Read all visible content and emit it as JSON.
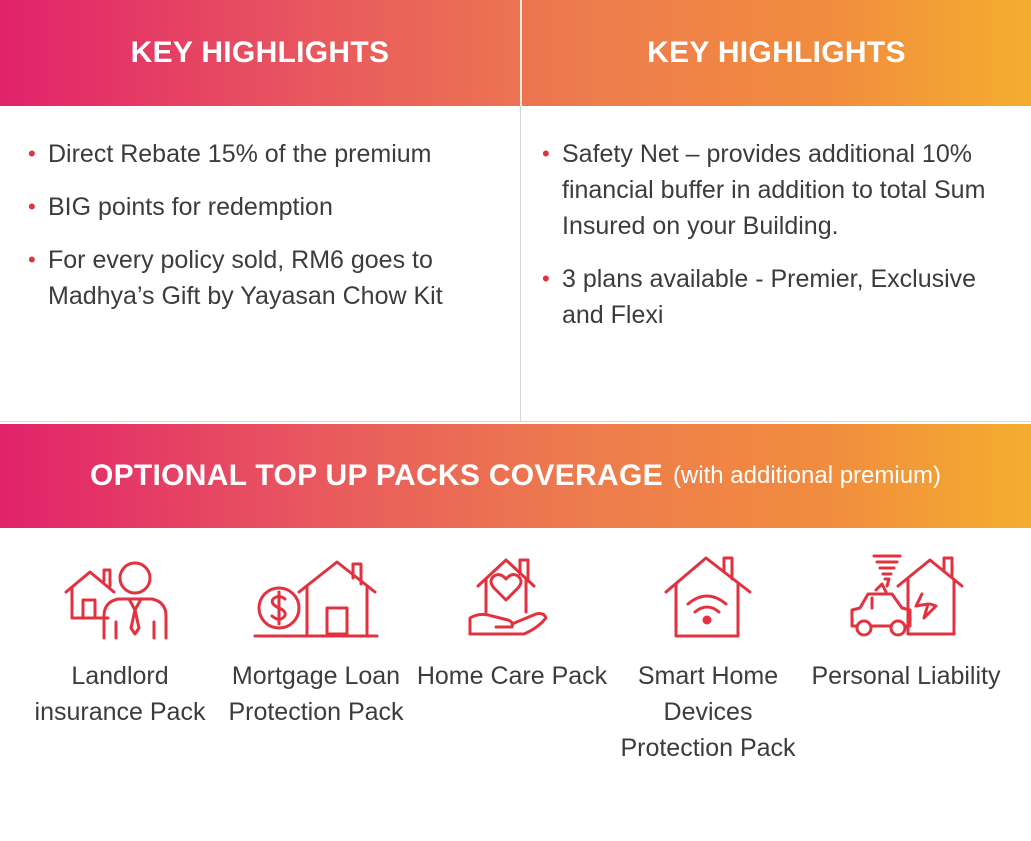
{
  "highlights": {
    "left": {
      "title": "KEY HIGHLIGHTS",
      "items": [
        "Direct Rebate 15% of the premium",
        "BIG points for redemption",
        "For every policy sold, RM6 goes to Madhya’s Gift by Yayasan Chow Kit"
      ]
    },
    "right": {
      "title": "KEY HIGHLIGHTS",
      "items": [
        "Safety Net – provides additional 10% financial buffer in addition to total Sum Insured on your Building.",
        "3 plans available - Premier, Exclusive and Flexi"
      ]
    }
  },
  "topup": {
    "title": "OPTIONAL TOP UP PACKS COVERAGE",
    "subtitle": "(with additional premium)",
    "packs": [
      {
        "icon": "landlord-icon",
        "label": "Landlord insurance Pack"
      },
      {
        "icon": "mortgage-house-icon",
        "label": "Mortgage Loan Protection Pack"
      },
      {
        "icon": "home-care-icon",
        "label": "Home Care Pack"
      },
      {
        "icon": "smart-home-wifi-icon",
        "label": "Smart Home Devices Protection Pack"
      },
      {
        "icon": "personal-liability-icon",
        "label": "Personal Liability"
      }
    ]
  },
  "colors": {
    "gradient_start": "#e2226b",
    "gradient_end": "#f4ad2e",
    "icon_red": "#e2323f",
    "bullet_red": "#e2323f",
    "text": "#3c3c3c"
  }
}
